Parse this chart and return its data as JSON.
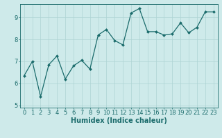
{
  "x": [
    0,
    1,
    2,
    3,
    4,
    5,
    6,
    7,
    8,
    9,
    10,
    11,
    12,
    13,
    14,
    15,
    16,
    17,
    18,
    19,
    20,
    21,
    22,
    23
  ],
  "y": [
    6.35,
    7.0,
    5.4,
    6.85,
    7.25,
    6.2,
    6.8,
    7.05,
    6.65,
    8.2,
    8.45,
    7.95,
    7.75,
    9.2,
    9.4,
    8.35,
    8.35,
    8.2,
    8.25,
    8.75,
    8.3,
    8.55,
    9.25,
    9.25
  ],
  "line_color": "#1a6b6b",
  "marker": "D",
  "marker_size": 2.0,
  "linewidth": 0.9,
  "xlabel": "Humidex (Indice chaleur)",
  "xlim": [
    -0.5,
    23.5
  ],
  "ylim": [
    4.9,
    9.6
  ],
  "yticks": [
    5,
    6,
    7,
    8,
    9
  ],
  "xticks": [
    0,
    1,
    2,
    3,
    4,
    5,
    6,
    7,
    8,
    9,
    10,
    11,
    12,
    13,
    14,
    15,
    16,
    17,
    18,
    19,
    20,
    21,
    22,
    23
  ],
  "bg_color": "#ceeaea",
  "grid_color": "#aed4d4",
  "tick_label_fontsize": 6.0,
  "xlabel_fontsize": 7.0
}
